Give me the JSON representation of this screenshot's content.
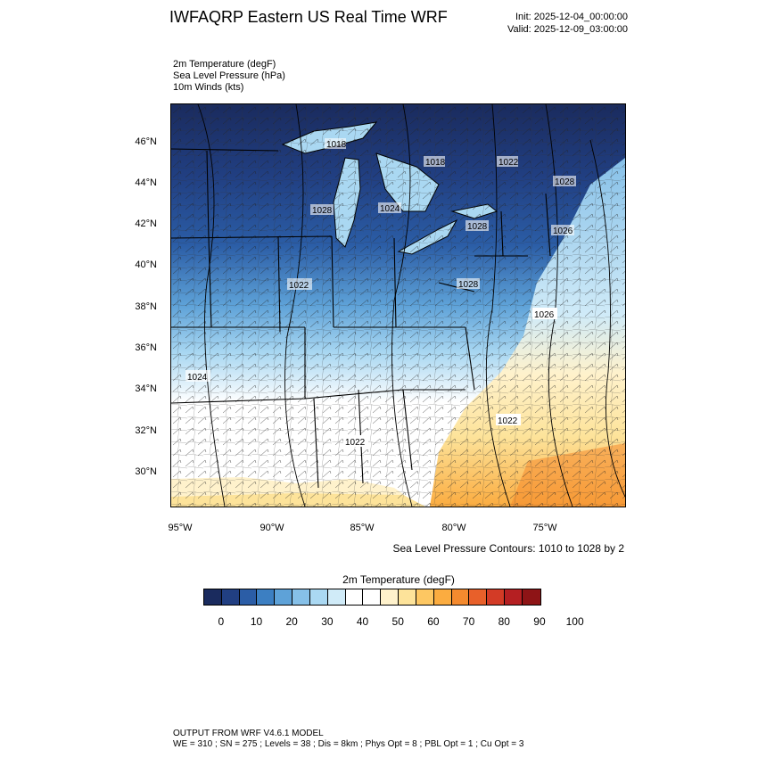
{
  "header": {
    "title": "IWFAQRP Eastern US Real Time WRF",
    "init": "Init: 2025-12-04_00:00:00",
    "valid": "Valid: 2025-12-09_03:00:00"
  },
  "fields": [
    "2m Temperature   (degF)",
    "Sea Level Pressure   (hPa)",
    "10m Winds   (kts)"
  ],
  "map": {
    "lat_labels": [
      "46°N",
      "44°N",
      "42°N",
      "40°N",
      "38°N",
      "36°N",
      "34°N",
      "32°N",
      "30°N"
    ],
    "lon_labels": [
      "95°W",
      "90°W",
      "85°W",
      "80°W",
      "75°W"
    ],
    "pressure_labels": [
      "1018",
      "1018",
      "1022",
      "1028",
      "1024",
      "1028",
      "1028",
      "1026",
      "1026",
      "1028",
      "1022",
      "1024",
      "1022",
      "1022"
    ],
    "contour_note": "Sea Level Pressure Contours: 1010 to 1028 by 2"
  },
  "colorbar": {
    "title": "2m Temperature  (degF)",
    "ticks": [
      "0",
      "10",
      "20",
      "30",
      "40",
      "50",
      "60",
      "70",
      "80",
      "90",
      "100"
    ],
    "colors": [
      "#1a2b5e",
      "#213f82",
      "#2b5da6",
      "#3c7fc2",
      "#5ea2d8",
      "#86c0e8",
      "#aad8f2",
      "#d0ebf8",
      "#ffffff",
      "#ffffff",
      "#fff2cc",
      "#fde39a",
      "#fdc762",
      "#fbac40",
      "#f48a2e",
      "#e8602a",
      "#d33b26",
      "#b51f22",
      "#8e1416"
    ]
  },
  "footer": {
    "line1": "OUTPUT FROM WRF V4.6.1 MODEL",
    "line2": "WE = 310 ; SN = 275 ; Levels = 38 ; Dis = 8km ; Phys Opt = 8 ; PBL Opt = 1 ; Cu Opt = 3"
  }
}
